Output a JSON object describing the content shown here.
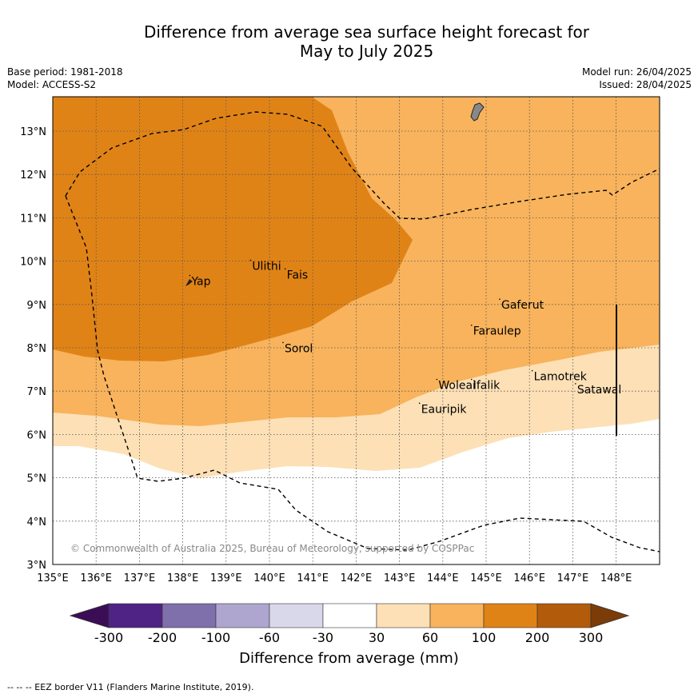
{
  "title_line1": "Difference from average sea surface height forecast for",
  "title_line2": "May to July 2025",
  "meta_left": [
    "Base period: 1981-2018",
    "Model: ACCESS-S2"
  ],
  "meta_right": [
    "Model run: 26/04/2025",
    "Issued: 28/04/2025"
  ],
  "lat_ticks": [
    "3°N",
    "4°N",
    "5°N",
    "6°N",
    "7°N",
    "8°N",
    "9°N",
    "10°N",
    "11°N",
    "12°N",
    "13°N"
  ],
  "lon_ticks": [
    "135°E",
    "136°E",
    "137°E",
    "138°E",
    "139°E",
    "140°E",
    "141°E",
    "142°E",
    "143°E",
    "144°E",
    "145°E",
    "146°E",
    "147°E",
    "148°E"
  ],
  "places": [
    {
      "name": "Yap",
      "lon": 138.2,
      "lat": 9.45
    },
    {
      "name": "Ulithi",
      "lon": 139.6,
      "lat": 9.8
    },
    {
      "name": "Fais",
      "lon": 140.4,
      "lat": 9.6
    },
    {
      "name": "Sorol",
      "lon": 140.35,
      "lat": 7.9
    },
    {
      "name": "Gaferut",
      "lon": 145.35,
      "lat": 8.9
    },
    {
      "name": "Faraulep",
      "lon": 144.7,
      "lat": 8.3
    },
    {
      "name": "Woleai",
      "lon": 143.9,
      "lat": 7.05
    },
    {
      "name": "Ifalik",
      "lon": 144.7,
      "lat": 7.05
    },
    {
      "name": "Lamotrek",
      "lon": 146.1,
      "lat": 7.25
    },
    {
      "name": "Satawal",
      "lon": 147.1,
      "lat": 6.95
    },
    {
      "name": "Eauripik",
      "lon": 143.5,
      "lat": 6.5
    }
  ],
  "copyright": "© Commonwealth of Australia 2025, Bureau of Meteorology, supported by COSPPac",
  "colorbar": {
    "ticks": [
      "-300",
      "-200",
      "-100",
      "-60",
      "-30",
      "30",
      "60",
      "100",
      "200",
      "300"
    ],
    "colors": [
      "#3c0d57",
      "#4f2385",
      "#7f6fab",
      "#afa6cf",
      "#d9d8ea",
      "#ffffff",
      "#fde0b6",
      "#f8b35c",
      "#e08317",
      "#b25b0a",
      "#7b3c08"
    ],
    "label": "Difference from average (mm)"
  },
  "footer": "-- -- -- EEZ border V11 (Flanders Marine Institute, 2019)."
}
